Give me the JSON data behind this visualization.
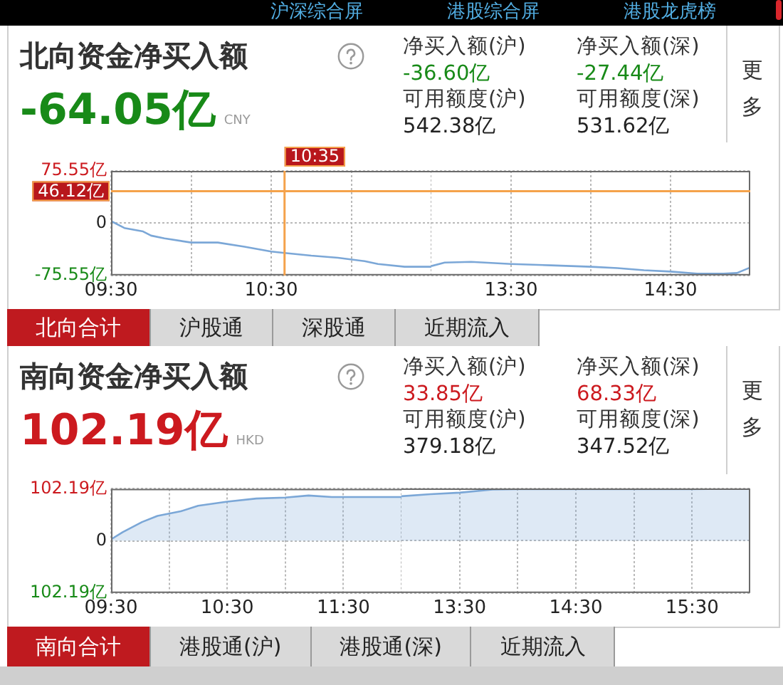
{
  "chart_data": [
    {
      "type": "other",
      "annotations": [
        "沪深综合屏",
        "港股综合屏",
        "港股龙虎榜"
      ]
    },
    {
      "type": "line",
      "title": "北向资金净买入额",
      "annotations": [
        "-64.05亿",
        "CNY",
        "净买入额(沪)",
        "-36.60亿",
        "净买入额(深)",
        "-27.44亿",
        "可用额度(沪)",
        "542.38亿",
        "可用额度(深)",
        "531.62亿",
        "更多",
        "北向合计",
        "沪股通",
        "深股通",
        "近期流入",
        "10:35"
      ],
      "x": [
        9.5,
        9.5833,
        9.7,
        9.75,
        9.8333,
        10,
        10.1667,
        10.3333,
        10.5,
        10.5833,
        10.75,
        10.9167,
        11.0833,
        11.1667,
        11.3333,
        11.5
      ],
      "series": [
        {
          "color": "#7ba7d7",
          "values": [
            3,
            -7,
            -12,
            -18,
            -22,
            -28,
            -28,
            -34,
            -41,
            -43,
            -47,
            -50,
            -55,
            -59,
            -63,
            -63
          ]
        }
      ],
      "xlim": [
        9.5,
        11.5
      ],
      "xticks": [
        {
          "value": 9.5,
          "label": "09:30"
        },
        {
          "value": 10,
          "label": null
        },
        {
          "value": 10.5,
          "label": "10:30"
        },
        {
          "value": 11,
          "label": null
        },
        {
          "value": 11.5,
          "label": null
        }
      ],
      "ylim": [
        -75.55,
        75.55
      ],
      "yticks": [
        {
          "value": 75.55,
          "label": "75.55亿"
        },
        0,
        {
          "value": -75.55,
          "label": "-75.55亿"
        }
      ],
      "grid": true,
      "marker": "none",
      "ref_lines": [
        {
          "axis": "x",
          "value": 10.583333333333334,
          "color": "#f5a24b"
        },
        {
          "axis": "y",
          "value": 46.12,
          "label": "46.12亿",
          "color": "#f5a24b"
        }
      ]
    },
    {
      "type": "line",
      "x": [
        13,
        13.0833,
        13.25,
        13.4167,
        13.5,
        13.75,
        14,
        14.1667,
        14.3333,
        14.5,
        14.6667,
        14.8333,
        14.9167,
        15
      ],
      "series": [
        {
          "color": "#7ba7d7",
          "values": [
            -62,
            -57,
            -56,
            -58,
            -59,
            -61,
            -63,
            -65,
            -68,
            -70,
            -73,
            -73,
            -72,
            -64
          ]
        }
      ],
      "xlim": [
        13,
        15
      ],
      "xticks": [
        {
          "value": 13.5,
          "label": "13:30"
        },
        {
          "value": 14,
          "label": null
        },
        {
          "value": 14.5,
          "label": "14:30"
        }
      ],
      "ylim": [
        -75.55,
        75.55
      ],
      "yticks": [
        75.55,
        0,
        -75.55
      ],
      "tick_labels": "x",
      "grid": true,
      "marker": "none",
      "ref_lines": [
        {
          "axis": "y",
          "value": 46.12,
          "label": null,
          "color": "#f5a24b"
        }
      ]
    },
    {
      "type": "area",
      "title": "南向资金净买入额",
      "annotations": [
        "102.19亿",
        "HKD",
        "净买入额(沪)",
        "33.85亿",
        "净买入额(深)",
        "68.33亿",
        "可用额度(沪)",
        "379.18亿",
        "可用额度(深)",
        "347.52亿",
        "更多",
        "南向合计",
        "港股通(沪)",
        "港股通(深)",
        "近期流入"
      ],
      "x": [
        9.5,
        9.6,
        9.7667,
        9.9,
        10.1,
        10.25,
        10.5,
        10.75,
        11,
        11.2,
        11.4,
        11.7,
        12
      ],
      "series": [
        {
          "color": "#7ba7d7",
          "values": [
            3,
            17,
            37,
            49,
            58,
            69,
            77,
            83,
            85,
            89,
            86,
            86,
            86
          ]
        }
      ],
      "xlim": [
        9.5,
        12
      ],
      "xticks": [
        {
          "value": 9.5,
          "label": "09:30"
        },
        {
          "value": 10,
          "label": null
        },
        {
          "value": 10.5,
          "label": "10:30"
        },
        {
          "value": 11,
          "label": null
        },
        {
          "value": 11.5,
          "label": "11:30"
        },
        {
          "value": 12,
          "label": null
        }
      ],
      "ylim": [
        -102.19,
        102.19
      ],
      "yticks": [
        {
          "value": 102.19,
          "label": "102.19亿"
        },
        0,
        {
          "value": -102.19,
          "label": "102.19亿"
        }
      ],
      "grid": true,
      "marker": "none"
    },
    {
      "type": "area",
      "x": [
        13,
        13.25,
        13.5,
        13.7833,
        14,
        14.5,
        15,
        15.5,
        16
      ],
      "series": [
        {
          "color": "#7ba7d7",
          "values": [
            87,
            91,
            94,
            100,
            101,
            101,
            101,
            101,
            102
          ]
        }
      ],
      "xlim": [
        13,
        16
      ],
      "xticks": [
        {
          "value": 13.5,
          "label": "13:30"
        },
        {
          "value": 14,
          "label": null
        },
        {
          "value": 14.5,
          "label": "14:30"
        },
        {
          "value": 15,
          "label": null
        },
        {
          "value": 15.5,
          "label": "15:30"
        }
      ],
      "ylim": [
        -102.19,
        102.19
      ],
      "yticks": [
        102.19,
        0,
        -102.19
      ],
      "tick_labels": "x",
      "grid": true,
      "marker": "none"
    }
  ]
}
